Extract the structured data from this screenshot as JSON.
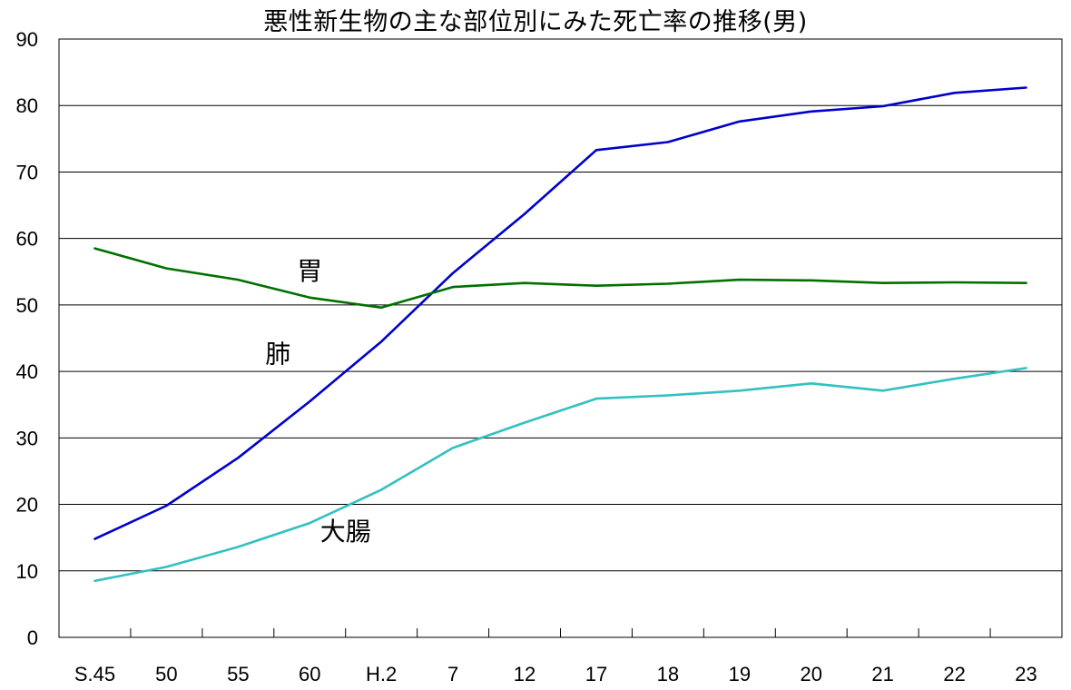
{
  "chart_data": {
    "type": "line",
    "title": "悪性新生物の主な部位別にみた死亡率の推移(男)",
    "xlabel": "",
    "ylabel": "",
    "ylim": [
      0,
      90
    ],
    "yticks": [
      0,
      10,
      20,
      30,
      40,
      50,
      60,
      70,
      80,
      90
    ],
    "grid": true,
    "legend": "none",
    "categories": [
      "S.45",
      "50",
      "55",
      "60",
      "H.2",
      "7",
      "12",
      "17",
      "18",
      "19",
      "20",
      "21",
      "22",
      "23"
    ],
    "series": [
      {
        "name": "肺",
        "color": "#0000CC",
        "values": [
          14.8,
          19.8,
          27.0,
          35.5,
          44.5,
          54.8,
          63.7,
          73.3,
          74.5,
          77.6,
          79.1,
          79.9,
          81.9,
          82.7
        ]
      },
      {
        "name": "胃",
        "color": "#007000",
        "values": [
          58.5,
          55.5,
          53.8,
          51.1,
          49.6,
          52.7,
          53.3,
          52.9,
          53.2,
          53.8,
          53.7,
          53.3,
          53.4,
          53.3
        ]
      },
      {
        "name": "大腸",
        "color": "#33C0C0",
        "values": [
          8.5,
          10.6,
          13.6,
          17.2,
          22.2,
          28.5,
          32.3,
          35.9,
          36.4,
          37.1,
          38.2,
          37.1,
          38.9,
          40.5
        ]
      }
    ]
  }
}
